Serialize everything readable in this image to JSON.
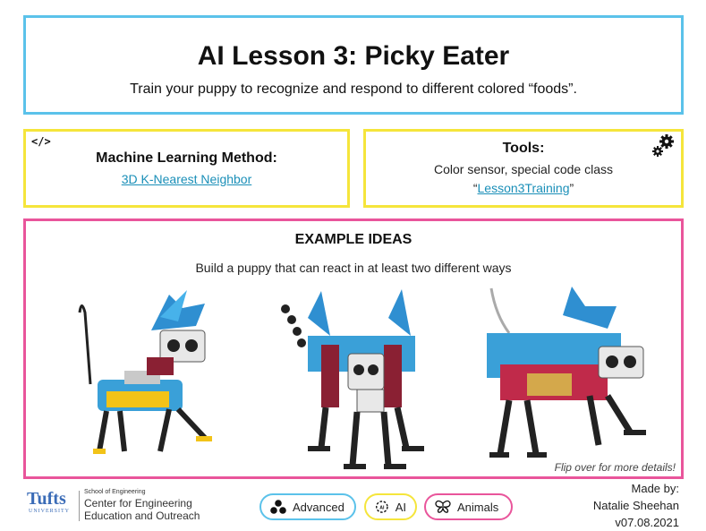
{
  "title": {
    "heading": "AI Lesson 3: Picky Eater",
    "subtitle": "Train your puppy to recognize and respond to different colored “foods”."
  },
  "ml_method": {
    "heading": "Machine Learning Method:",
    "link": "3D K-Nearest Neighbor",
    "icon": "code-icon"
  },
  "tools": {
    "heading": "Tools:",
    "line1": "Color sensor, special code class",
    "quote_open": "“",
    "link": "Lesson3Training",
    "quote_close": "”",
    "icon": "gear-icon"
  },
  "examples": {
    "heading": "EXAMPLE IDEAS",
    "subtitle": "Build a puppy that can react in at least two different ways",
    "flip_note": "Flip over for more details!"
  },
  "footer": {
    "logo_word": "Tufts",
    "logo_univ": "UNIVERSITY",
    "school": "School of Engineering",
    "center_line1": "Center for Engineering",
    "center_line2": "Education and Outreach",
    "tags": {
      "advanced": "Advanced",
      "ai": "AI",
      "animals": "Animals"
    },
    "credits": {
      "made_by": "Made by:",
      "author": "Natalie Sheehan",
      "version": "v07.08.2021"
    }
  },
  "colors": {
    "blue": "#5bc2ea",
    "yellow": "#f5e53b",
    "pink": "#e9559b",
    "link": "#1a8fb8"
  }
}
